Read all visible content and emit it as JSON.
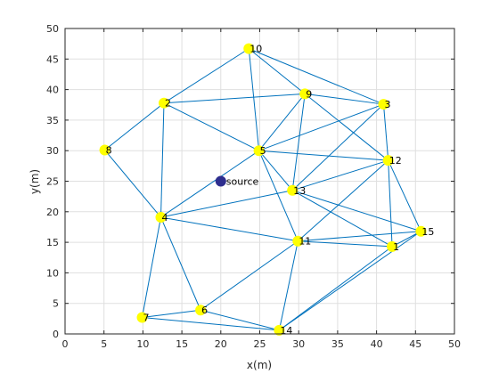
{
  "chart_data": {
    "type": "scatter",
    "title": "",
    "xlabel": "x(m)",
    "ylabel": "y(m)",
    "xlim": [
      0,
      50
    ],
    "ylim": [
      0,
      50
    ],
    "xticks": [
      0,
      5,
      10,
      15,
      20,
      25,
      30,
      35,
      40,
      45,
      50
    ],
    "yticks": [
      0,
      5,
      10,
      15,
      20,
      25,
      30,
      35,
      40,
      45,
      50
    ],
    "grid": true,
    "colors": {
      "node": "#ffff00",
      "edge": "#0072bd",
      "source": "#2e2e8e"
    },
    "nodes": [
      {
        "id": "1",
        "x": 42.0,
        "y": 14.3
      },
      {
        "id": "2",
        "x": 12.7,
        "y": 37.8
      },
      {
        "id": "3",
        "x": 40.9,
        "y": 37.6
      },
      {
        "id": "4",
        "x": 12.3,
        "y": 19.1
      },
      {
        "id": "5",
        "x": 24.9,
        "y": 30.0
      },
      {
        "id": "6",
        "x": 17.4,
        "y": 3.9
      },
      {
        "id": "7",
        "x": 9.9,
        "y": 2.7
      },
      {
        "id": "8",
        "x": 5.1,
        "y": 30.1
      },
      {
        "id": "9",
        "x": 30.8,
        "y": 39.3
      },
      {
        "id": "10",
        "x": 23.6,
        "y": 46.7
      },
      {
        "id": "11",
        "x": 29.9,
        "y": 15.2
      },
      {
        "id": "12",
        "x": 41.5,
        "y": 28.4
      },
      {
        "id": "13",
        "x": 29.2,
        "y": 23.5
      },
      {
        "id": "14",
        "x": 27.5,
        "y": 0.6
      },
      {
        "id": "15",
        "x": 45.7,
        "y": 16.8
      }
    ],
    "edges": [
      [
        "10",
        "2"
      ],
      [
        "10",
        "9"
      ],
      [
        "10",
        "3"
      ],
      [
        "10",
        "5"
      ],
      [
        "2",
        "9"
      ],
      [
        "2",
        "8"
      ],
      [
        "2",
        "5"
      ],
      [
        "2",
        "4"
      ],
      [
        "9",
        "3"
      ],
      [
        "9",
        "5"
      ],
      [
        "9",
        "13"
      ],
      [
        "9",
        "12"
      ],
      [
        "3",
        "5"
      ],
      [
        "3",
        "13"
      ],
      [
        "3",
        "12"
      ],
      [
        "8",
        "4"
      ],
      [
        "5",
        "12"
      ],
      [
        "5",
        "13"
      ],
      [
        "5",
        "11"
      ],
      [
        "5",
        "4"
      ],
      [
        "12",
        "13"
      ],
      [
        "12",
        "11"
      ],
      [
        "12",
        "1"
      ],
      [
        "12",
        "15"
      ],
      [
        "13",
        "4"
      ],
      [
        "13",
        "1"
      ],
      [
        "13",
        "15"
      ],
      [
        "4",
        "11"
      ],
      [
        "4",
        "7"
      ],
      [
        "4",
        "6"
      ],
      [
        "11",
        "15"
      ],
      [
        "11",
        "1"
      ],
      [
        "11",
        "6"
      ],
      [
        "11",
        "14"
      ],
      [
        "15",
        "1"
      ],
      [
        "15",
        "14"
      ],
      [
        "1",
        "14"
      ],
      [
        "7",
        "6"
      ],
      [
        "7",
        "14"
      ],
      [
        "6",
        "14"
      ]
    ],
    "source": {
      "label": "source",
      "x": 20.0,
      "y": 25.0
    }
  }
}
